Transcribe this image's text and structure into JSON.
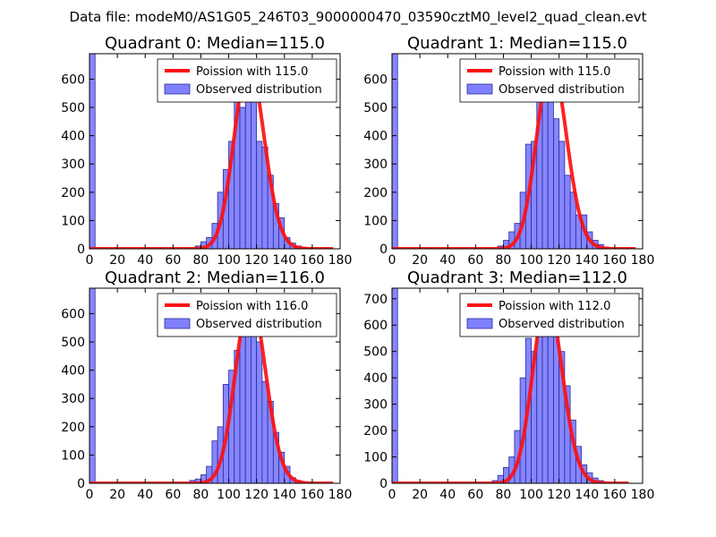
{
  "suptitle": "Data file: modeM0/AS1G05_246T03_9000000470_03590cztM0_level2_quad_clean.evt",
  "colors": {
    "hist_fill": "#8080ff",
    "hist_edge": "#2a2a9a",
    "poisson_line": "#ff1010"
  },
  "chart_data": [
    {
      "type": "bar",
      "title": "Quadrant 0: Median=115.0",
      "xlim": [
        0,
        180
      ],
      "ylim": [
        0,
        690
      ],
      "xticks": [
        0,
        20,
        40,
        60,
        80,
        100,
        120,
        140,
        160,
        180
      ],
      "yticks": [
        0,
        100,
        200,
        300,
        400,
        500,
        600
      ],
      "median": 115.0,
      "legend": [
        "Poission with 115.0",
        "Observed distribution"
      ],
      "bin_width": 4,
      "bin_starts": [
        0,
        76,
        80,
        84,
        88,
        92,
        96,
        100,
        104,
        108,
        112,
        116,
        120,
        124,
        128,
        132,
        136,
        140,
        144,
        148,
        152,
        156
      ],
      "counts": [
        690,
        10,
        25,
        40,
        90,
        200,
        280,
        380,
        560,
        500,
        615,
        650,
        380,
        360,
        260,
        160,
        110,
        40,
        20,
        10,
        5,
        2
      ],
      "poisson_amplitude": 655,
      "poisson_x_range": [
        0,
        175
      ]
    },
    {
      "type": "bar",
      "title": "Quadrant 1: Median=115.0",
      "xlim": [
        0,
        180
      ],
      "ylim": [
        0,
        690
      ],
      "xticks": [
        0,
        20,
        40,
        60,
        80,
        100,
        120,
        140,
        160,
        180
      ],
      "yticks": [
        0,
        100,
        200,
        300,
        400,
        500,
        600
      ],
      "median": 115.0,
      "legend": [
        "Poission with 115.0",
        "Observed distribution"
      ],
      "bin_width": 4,
      "bin_starts": [
        0,
        76,
        80,
        84,
        88,
        92,
        96,
        100,
        104,
        108,
        112,
        116,
        120,
        124,
        128,
        132,
        136,
        140,
        144,
        148,
        152
      ],
      "counts": [
        690,
        10,
        30,
        60,
        90,
        200,
        370,
        380,
        540,
        560,
        650,
        460,
        380,
        260,
        200,
        120,
        120,
        60,
        30,
        15,
        5
      ],
      "poisson_amplitude": 655,
      "poisson_x_range": [
        0,
        175
      ]
    },
    {
      "type": "bar",
      "title": "Quadrant 2: Median=116.0",
      "xlim": [
        0,
        180
      ],
      "ylim": [
        0,
        690
      ],
      "xticks": [
        0,
        20,
        40,
        60,
        80,
        100,
        120,
        140,
        160,
        180
      ],
      "yticks": [
        0,
        100,
        200,
        300,
        400,
        500,
        600
      ],
      "median": 116.0,
      "legend": [
        "Poission with 116.0",
        "Observed distribution"
      ],
      "bin_width": 4,
      "bin_starts": [
        0,
        72,
        76,
        80,
        84,
        88,
        92,
        96,
        100,
        104,
        108,
        112,
        116,
        120,
        124,
        128,
        132,
        136,
        140,
        144,
        148,
        152,
        156
      ],
      "counts": [
        690,
        10,
        15,
        30,
        60,
        150,
        200,
        350,
        400,
        470,
        600,
        640,
        660,
        500,
        360,
        290,
        180,
        110,
        60,
        20,
        10,
        5,
        2
      ],
      "poisson_amplitude": 655,
      "poisson_x_range": [
        0,
        175
      ]
    },
    {
      "type": "bar",
      "title": "Quadrant 3: Median=112.0",
      "xlim": [
        0,
        180
      ],
      "ylim": [
        0,
        740
      ],
      "xticks": [
        0,
        20,
        40,
        60,
        80,
        100,
        120,
        140,
        160,
        180
      ],
      "yticks": [
        0,
        100,
        200,
        300,
        400,
        500,
        600,
        700
      ],
      "median": 112.0,
      "legend": [
        "Poission with 112.0",
        "Observed distribution"
      ],
      "bin_width": 4,
      "bin_starts": [
        0,
        72,
        76,
        80,
        84,
        88,
        92,
        96,
        100,
        104,
        108,
        112,
        116,
        120,
        124,
        128,
        132,
        136,
        140,
        144,
        148
      ],
      "counts": [
        740,
        10,
        30,
        60,
        100,
        200,
        400,
        550,
        500,
        640,
        710,
        700,
        600,
        500,
        370,
        240,
        140,
        70,
        40,
        20,
        10
      ],
      "poisson_amplitude": 700,
      "poisson_x_range": [
        0,
        170
      ]
    }
  ]
}
